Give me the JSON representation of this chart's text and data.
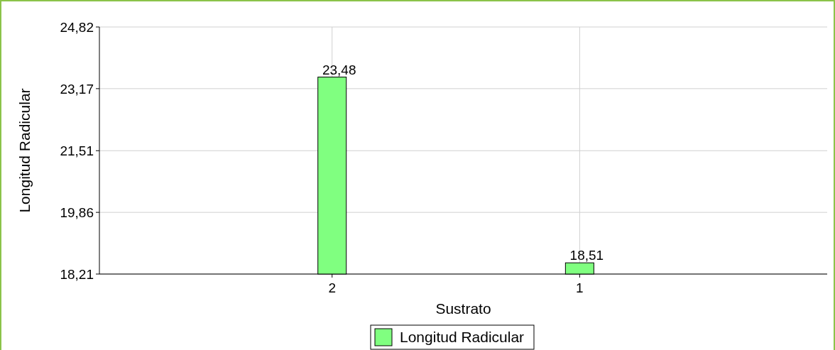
{
  "chart_data": {
    "type": "bar",
    "xlabel": "Sustrato",
    "ylabel": "Longitud Radicular",
    "categories": [
      "2",
      "1"
    ],
    "series": [
      {
        "name": "Longitud Radicular",
        "color": "#80ff80",
        "values": [
          23.48,
          18.51
        ],
        "value_labels": [
          "23,48",
          "18,51"
        ]
      }
    ],
    "ylim": [
      18.21,
      24.82
    ],
    "yticks": [
      {
        "value": 18.21,
        "label": "18,21"
      },
      {
        "value": 19.86,
        "label": "19,86"
      },
      {
        "value": 21.51,
        "label": "21,51"
      },
      {
        "value": 23.17,
        "label": "23,17"
      },
      {
        "value": 24.82,
        "label": "24,82"
      }
    ],
    "grid": true,
    "legend": "bottom"
  }
}
